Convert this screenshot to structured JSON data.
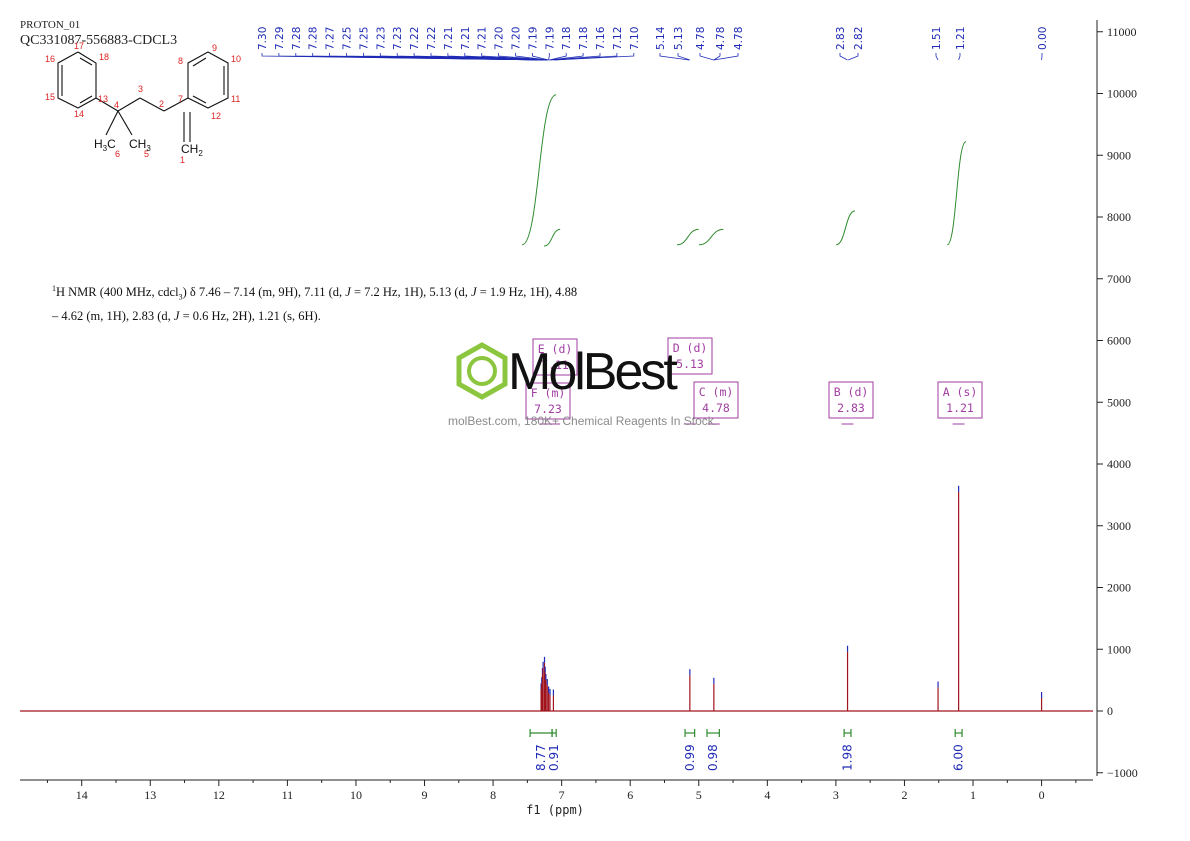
{
  "header": {
    "experiment": "PROTON_01",
    "sample": "QC331087-556883-CDCL3"
  },
  "description": {
    "lead": "H NMR (400 MHz, cdcl",
    "lead_sup": "1",
    "sub3": "3",
    "line1_rest": ") δ 7.46 – 7.14 (m, 9H), 7.11 (d, ",
    "j1": "J",
    "t1": " = 7.2 Hz, 1H), 5.13 (d, ",
    "j2": "J",
    "t2": " = 1.9 Hz, 1H), 4.88",
    "line2a": "– 4.62 (m, 1H), 2.83 (d, ",
    "j3": "J",
    "line2b": " = 0.6 Hz, 2H), 1.21 (s, 6H)."
  },
  "watermark": {
    "brand": "MolBest",
    "tagline": "molBest.com, 180K+ Chemical Reagents In Stock."
  },
  "structure": {
    "atom_numbers": [
      "1",
      "2",
      "3",
      "4",
      "5",
      "6",
      "7",
      "8",
      "9",
      "10",
      "11",
      "12",
      "13",
      "14",
      "15",
      "16",
      "17",
      "18"
    ],
    "ch2": "CH",
    "ch2_sub": "2",
    "h3c": "H",
    "h3c_sub": "3",
    "h3c_c": "C",
    "ch3": "CH",
    "ch3_sub": "3"
  },
  "chart_data": {
    "type": "line",
    "title": "",
    "xlabel": "f1 (ppm)",
    "ylabel": "",
    "xlim": [
      14.9,
      -0.75
    ],
    "ylim": [
      -1000,
      11000
    ],
    "x_ticks": [
      14,
      13,
      12,
      11,
      10,
      9,
      8,
      7,
      6,
      5,
      4,
      3,
      2,
      1,
      0
    ],
    "y_ticks": [
      -1000,
      0,
      1000,
      2000,
      3000,
      4000,
      5000,
      6000,
      7000,
      8000,
      9000,
      10000,
      11000
    ],
    "series": [
      {
        "peaks": [
          {
            "ppm": 7.3,
            "height": 350
          },
          {
            "ppm": 7.29,
            "height": 450
          },
          {
            "ppm": 7.28,
            "height": 600
          },
          {
            "ppm": 7.27,
            "height": 700
          },
          {
            "ppm": 7.25,
            "height": 780
          },
          {
            "ppm": 7.24,
            "height": 620
          },
          {
            "ppm": 7.23,
            "height": 500
          },
          {
            "ppm": 7.21,
            "height": 420
          },
          {
            "ppm": 7.19,
            "height": 300
          },
          {
            "ppm": 7.17,
            "height": 260
          },
          {
            "ppm": 7.12,
            "height": 250
          },
          {
            "ppm": 5.13,
            "height": 580
          },
          {
            "ppm": 4.78,
            "height": 440
          },
          {
            "ppm": 2.83,
            "height": 960
          },
          {
            "ppm": 1.51,
            "height": 380
          },
          {
            "ppm": 1.21,
            "height": 3550
          },
          {
            "ppm": 0.0,
            "height": 210
          }
        ]
      }
    ],
    "peak_labels": [
      "7.30",
      "7.29",
      "7.28",
      "7.28",
      "7.27",
      "7.25",
      "7.25",
      "7.23",
      "7.23",
      "7.22",
      "7.22",
      "7.21",
      "7.21",
      "7.21",
      "7.20",
      "7.20",
      "7.19",
      "7.19",
      "7.18",
      "7.18",
      "7.16",
      "7.12",
      "7.10",
      "5.14",
      "5.13",
      "4.78",
      "4.78",
      "4.78",
      "2.83",
      "2.82",
      "1.51",
      "1.21",
      "0.00"
    ],
    "integrals": [
      {
        "from": 7.46,
        "to": 7.14,
        "value": "8.77",
        "y_start": 7550,
        "y_end": 9980
      },
      {
        "from": 7.14,
        "to": 7.08,
        "value": "0.91",
        "y_start": 7530,
        "y_end": 7800
      },
      {
        "from": 5.2,
        "to": 5.06,
        "value": "0.99",
        "y_start": 7550,
        "y_end": 7800
      },
      {
        "from": 4.88,
        "to": 4.7,
        "value": "0.98",
        "y_start": 7550,
        "y_end": 7800
      },
      {
        "from": 2.88,
        "to": 2.78,
        "value": "1.98",
        "y_start": 7550,
        "y_end": 8100
      },
      {
        "from": 1.26,
        "to": 1.16,
        "value": "6.00",
        "y_start": 7550,
        "y_end": 9220
      }
    ],
    "multiplets": [
      {
        "letter": "E",
        "type": "d",
        "ppm": "7.11",
        "label": "E (d)"
      },
      {
        "letter": "F",
        "type": "m",
        "ppm": "7.23",
        "label": "F (m)"
      },
      {
        "letter": "D",
        "type": "d",
        "ppm": "5.13",
        "label": "D (d)"
      },
      {
        "letter": "C",
        "type": "m",
        "ppm": "4.78",
        "label": "C (m)"
      },
      {
        "letter": "B",
        "type": "d",
        "ppm": "2.83",
        "label": "B (d)"
      },
      {
        "letter": "A",
        "type": "s",
        "ppm": "1.21",
        "label": "A (s)"
      }
    ],
    "colors": {
      "spectrum": "#a0141e",
      "peak_marker": "#1f2bb5",
      "integral": "#2e8b2e",
      "multiplet_box": "#a23ea2",
      "axis": "#222222"
    }
  }
}
